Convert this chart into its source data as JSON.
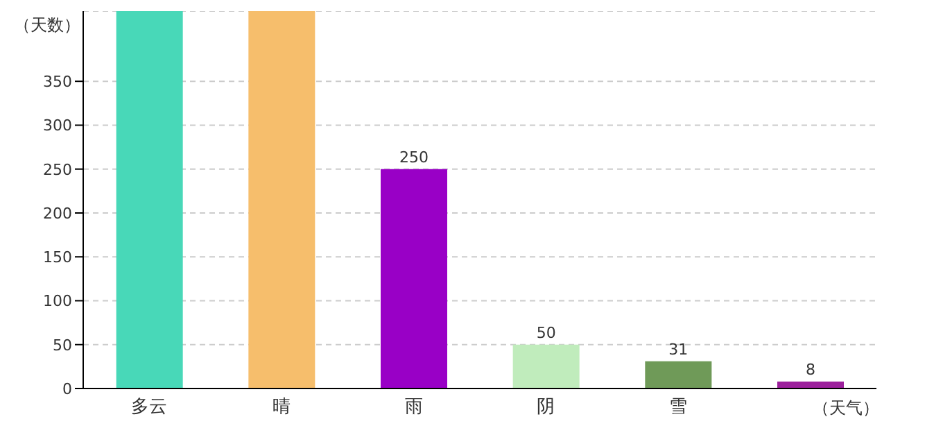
{
  "chart_data": {
    "type": "bar",
    "xlabel": "（天气）",
    "ylabel": "（天数）",
    "categories": [
      "多云",
      "晴",
      "雨",
      "阴",
      "雪",
      null
    ],
    "values": [
      430,
      430,
      250,
      50,
      31,
      8
    ],
    "colors": [
      "#48d8b8",
      "#f6be6c",
      "#9900c6",
      "#c0ecbc",
      "#6f9a58",
      "#9c209c"
    ],
    "value_labels": [
      null,
      null,
      "250",
      "50",
      "31",
      "8"
    ],
    "ylim": [
      0,
      430
    ],
    "yticks": [
      0,
      50,
      100,
      150,
      200,
      250,
      300,
      350
    ],
    "grid": "y"
  }
}
